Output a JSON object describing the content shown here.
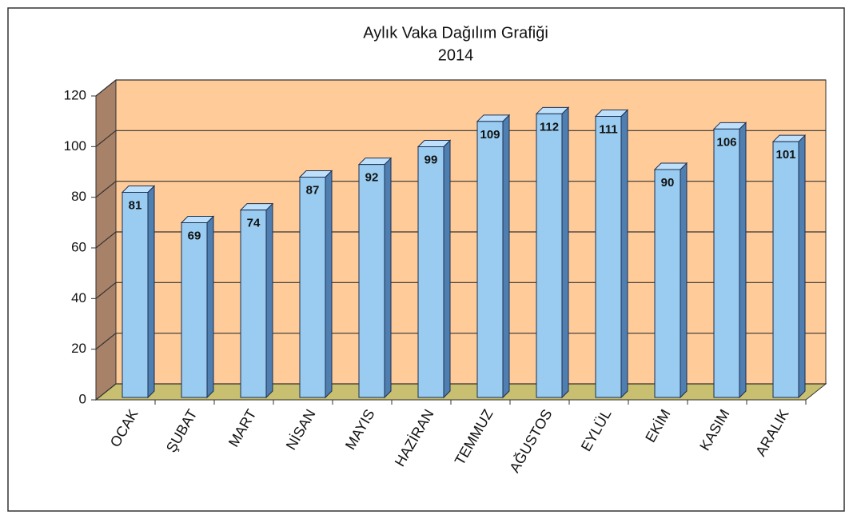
{
  "chart_data": {
    "type": "bar3d",
    "title": "Aylık Vaka Dağılım Grafiği",
    "subtitle": "2014",
    "categories": [
      "OCAK",
      "ŞUBAT",
      "MART",
      "NİSAN",
      "MAYIS",
      "HAZİRAN",
      "TEMMUZ",
      "AĞUSTOS",
      "EYLÜL",
      "EKİM",
      "KASIM",
      "ARALIK"
    ],
    "values": [
      81,
      69,
      74,
      87,
      92,
      99,
      109,
      112,
      111,
      90,
      106,
      101
    ],
    "color": "#99ccf0",
    "ylim": [
      0,
      120
    ],
    "yticks": [
      0,
      20,
      40,
      60,
      80,
      100,
      120
    ],
    "grid": true
  }
}
